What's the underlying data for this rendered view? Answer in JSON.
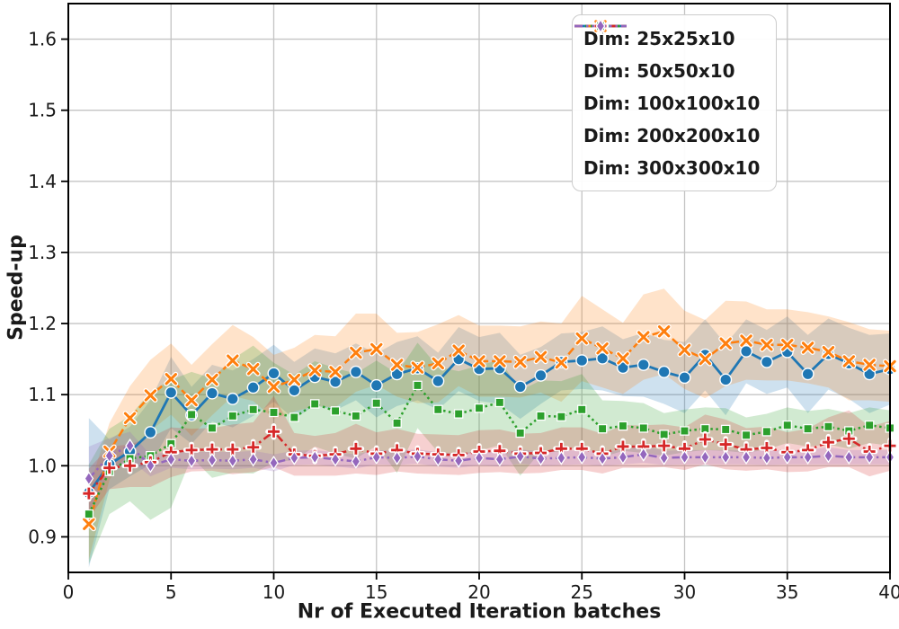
{
  "figure": {
    "background": "#ffffff",
    "grid_color": "#c4c4c4",
    "spine_color": "#000000",
    "text_color": "#1a1a1a"
  },
  "chart_data": {
    "type": "line",
    "title": "",
    "xlabel": "Nr of Executed Iteration batches",
    "ylabel": "Speed-up",
    "xlim": [
      0,
      40
    ],
    "ylim": [
      0.85,
      1.65
    ],
    "xticks": [
      0,
      5,
      10,
      15,
      20,
      25,
      30,
      35,
      40
    ],
    "yticks": [
      0.9,
      1.0,
      1.1,
      1.2,
      1.3,
      1.4,
      1.5,
      1.6
    ],
    "grid": true,
    "legend_position": "upper right",
    "x": [
      1,
      2,
      3,
      4,
      5,
      6,
      7,
      8,
      9,
      10,
      11,
      12,
      13,
      14,
      15,
      16,
      17,
      18,
      19,
      20,
      21,
      22,
      23,
      24,
      25,
      26,
      27,
      28,
      29,
      30,
      31,
      32,
      33,
      34,
      35,
      36,
      37,
      38,
      39,
      40
    ],
    "series": [
      {
        "name": "Dim: 25x25x10",
        "color": "#1f77b4",
        "linestyle": "solid",
        "marker": "circle",
        "values": [
          0.962,
          1.002,
          1.02,
          1.047,
          1.103,
          1.071,
          1.102,
          1.094,
          1.11,
          1.13,
          1.106,
          1.125,
          1.118,
          1.132,
          1.113,
          1.129,
          1.137,
          1.119,
          1.15,
          1.136,
          1.137,
          1.111,
          1.127,
          1.146,
          1.148,
          1.151,
          1.138,
          1.142,
          1.132,
          1.124,
          1.156,
          1.121,
          1.161,
          1.146,
          1.16,
          1.129,
          1.157,
          1.144,
          1.129,
          1.136
        ],
        "band_halfwidth": [
          0.105,
          0.035,
          0.035,
          0.045,
          0.05,
          0.04,
          0.04,
          0.04,
          0.04,
          0.04,
          0.04,
          0.04,
          0.04,
          0.04,
          0.045,
          0.045,
          0.045,
          0.04,
          0.045,
          0.045,
          0.05,
          0.045,
          0.04,
          0.04,
          0.04,
          0.045,
          0.04,
          0.045,
          0.045,
          0.05,
          0.05,
          0.05,
          0.045,
          0.045,
          0.05,
          0.055,
          0.05,
          0.05,
          0.055,
          0.05
        ]
      },
      {
        "name": "Dim: 50x50x10",
        "color": "#ff7f0e",
        "linestyle": "dashed",
        "marker": "x",
        "values": [
          0.918,
          1.02,
          1.067,
          1.099,
          1.122,
          1.092,
          1.121,
          1.148,
          1.136,
          1.111,
          1.121,
          1.134,
          1.132,
          1.159,
          1.164,
          1.142,
          1.138,
          1.144,
          1.162,
          1.147,
          1.147,
          1.146,
          1.153,
          1.145,
          1.179,
          1.165,
          1.151,
          1.181,
          1.189,
          1.163,
          1.15,
          1.172,
          1.176,
          1.17,
          1.17,
          1.166,
          1.16,
          1.147,
          1.142,
          1.14
        ],
        "band_halfwidth": [
          0.05,
          0.04,
          0.045,
          0.05,
          0.05,
          0.05,
          0.05,
          0.05,
          0.045,
          0.045,
          0.045,
          0.05,
          0.05,
          0.055,
          0.05,
          0.045,
          0.05,
          0.055,
          0.05,
          0.05,
          0.05,
          0.05,
          0.05,
          0.055,
          0.06,
          0.055,
          0.05,
          0.06,
          0.06,
          0.055,
          0.055,
          0.06,
          0.055,
          0.05,
          0.05,
          0.05,
          0.05,
          0.055,
          0.05,
          0.05
        ]
      },
      {
        "name": "Dim: 100x100x10",
        "color": "#2ca02c",
        "linestyle": "dotted",
        "marker": "square",
        "values": [
          0.932,
          0.992,
          1.01,
          1.014,
          1.031,
          1.072,
          1.053,
          1.07,
          1.079,
          1.075,
          1.068,
          1.087,
          1.077,
          1.07,
          1.088,
          1.06,
          1.113,
          1.079,
          1.073,
          1.081,
          1.089,
          1.046,
          1.07,
          1.069,
          1.079,
          1.052,
          1.056,
          1.053,
          1.044,
          1.049,
          1.052,
          1.051,
          1.043,
          1.048,
          1.057,
          1.052,
          1.055,
          1.049,
          1.057,
          1.053
        ],
        "band_halfwidth": [
          0.07,
          0.06,
          0.06,
          0.09,
          0.09,
          0.06,
          0.07,
          0.08,
          0.09,
          0.07,
          0.06,
          0.06,
          0.06,
          0.06,
          0.06,
          0.07,
          0.06,
          0.06,
          0.06,
          0.06,
          0.06,
          0.06,
          0.05,
          0.05,
          0.05,
          0.04,
          0.035,
          0.035,
          0.03,
          0.03,
          0.03,
          0.03,
          0.025,
          0.025,
          0.025,
          0.025,
          0.025,
          0.025,
          0.025,
          0.025
        ]
      },
      {
        "name": "Dim: 200x200x10",
        "color": "#d62728",
        "linestyle": "dashdot",
        "marker": "plus",
        "values": [
          0.961,
          0.997,
          1.0,
          1.005,
          1.019,
          1.022,
          1.023,
          1.023,
          1.026,
          1.048,
          1.016,
          1.014,
          1.016,
          1.024,
          1.017,
          1.022,
          1.017,
          1.016,
          1.015,
          1.02,
          1.021,
          1.017,
          1.018,
          1.024,
          1.024,
          1.017,
          1.027,
          1.027,
          1.028,
          1.024,
          1.037,
          1.03,
          1.023,
          1.025,
          1.019,
          1.022,
          1.033,
          1.038,
          1.02,
          1.028
        ],
        "band_halfwidth": [
          0.035,
          0.03,
          0.03,
          0.035,
          0.035,
          0.03,
          0.03,
          0.035,
          0.035,
          0.05,
          0.03,
          0.028,
          0.03,
          0.035,
          0.03,
          0.03,
          0.028,
          0.028,
          0.028,
          0.03,
          0.03,
          0.028,
          0.028,
          0.03,
          0.03,
          0.028,
          0.03,
          0.03,
          0.03,
          0.03,
          0.035,
          0.035,
          0.03,
          0.03,
          0.028,
          0.03,
          0.035,
          0.04,
          0.035,
          0.035
        ]
      },
      {
        "name": "Dim: 300x300x10",
        "color": "#9467bd",
        "linestyle": "dashdotdot",
        "marker": "diamond",
        "values": [
          0.982,
          1.014,
          1.028,
          1.0,
          1.009,
          1.007,
          1.008,
          1.007,
          1.009,
          1.004,
          1.011,
          1.012,
          1.009,
          1.006,
          1.012,
          1.011,
          1.013,
          1.009,
          1.007,
          1.011,
          1.009,
          1.013,
          1.01,
          1.011,
          1.012,
          1.01,
          1.012,
          1.016,
          1.011,
          1.012,
          1.012,
          1.012,
          1.012,
          1.011,
          1.012,
          1.012,
          1.014,
          1.012,
          1.012,
          1.012
        ],
        "band_halfwidth": [
          0.045,
          0.025,
          0.02,
          0.015,
          0.012,
          0.012,
          0.012,
          0.012,
          0.012,
          0.012,
          0.01,
          0.01,
          0.01,
          0.01,
          0.01,
          0.01,
          0.01,
          0.01,
          0.01,
          0.01,
          0.01,
          0.01,
          0.01,
          0.01,
          0.01,
          0.01,
          0.01,
          0.012,
          0.01,
          0.01,
          0.01,
          0.01,
          0.01,
          0.01,
          0.01,
          0.01,
          0.012,
          0.01,
          0.01,
          0.01
        ]
      }
    ]
  }
}
